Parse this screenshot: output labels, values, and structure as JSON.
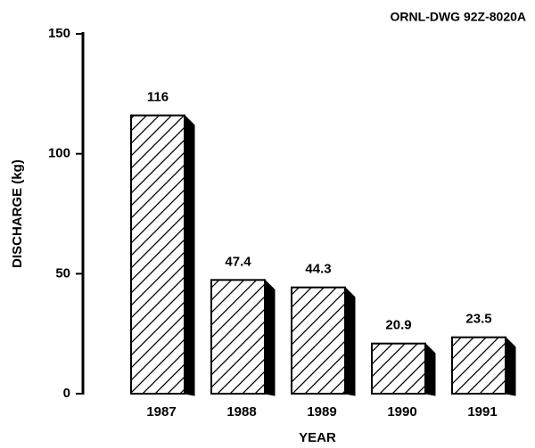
{
  "chart_data": {
    "type": "bar",
    "annotation": "ORNL-DWG 92Z-8020A",
    "y_label": "DISCHARGE (kg)",
    "x_label": "YEAR",
    "categories": [
      "1987",
      "1988",
      "1989",
      "1990",
      "1991"
    ],
    "values": [
      116,
      47.4,
      44.3,
      20.9,
      23.5
    ],
    "color": "#000000",
    "ylim": [
      0,
      150
    ],
    "yticks": [
      0,
      50,
      100,
      150
    ],
    "grid": false
  }
}
